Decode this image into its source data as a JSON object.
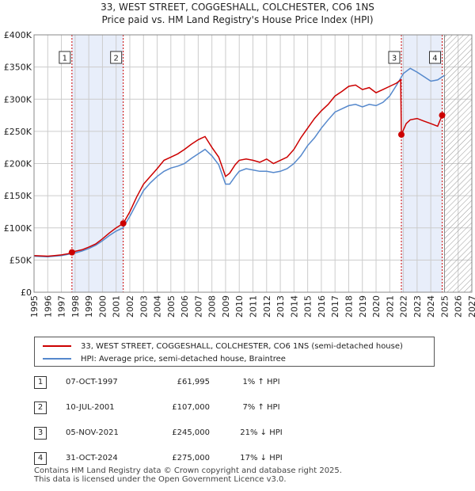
{
  "title_line1": "33, WEST STREET, COGGESHALL, COLCHESTER, CO6 1NS",
  "title_line2": "Price paid vs. HM Land Registry's House Price Index (HPI)",
  "colors": {
    "property_line": "#cc0000",
    "hpi_line": "#5588cc",
    "shade": "#e8eefa",
    "marker": "#cc0000",
    "vline": "#cc0000",
    "grid": "#cccccc"
  },
  "chart_data": {
    "type": "line",
    "title": "Price paid vs. HM Land Registry's House Price Index (HPI)",
    "xlabel": "",
    "ylabel": "",
    "xlim": [
      1995,
      2027
    ],
    "ylim": [
      0,
      400000
    ],
    "x_ticks": [
      1995,
      1996,
      1997,
      1998,
      1999,
      2000,
      2001,
      2002,
      2003,
      2004,
      2005,
      2006,
      2007,
      2008,
      2009,
      2010,
      2011,
      2012,
      2013,
      2014,
      2015,
      2016,
      2017,
      2018,
      2019,
      2020,
      2021,
      2022,
      2023,
      2024,
      2025,
      2026,
      2027
    ],
    "y_ticks": [
      {
        "value": 0,
        "label": "£0"
      },
      {
        "value": 50000,
        "label": "£50K"
      },
      {
        "value": 100000,
        "label": "£100K"
      },
      {
        "value": 150000,
        "label": "£150K"
      },
      {
        "value": 200000,
        "label": "£200K"
      },
      {
        "value": 250000,
        "label": "£250K"
      },
      {
        "value": 300000,
        "label": "£300K"
      },
      {
        "value": 350000,
        "label": "£350K"
      },
      {
        "value": 400000,
        "label": "£400K"
      }
    ],
    "grid": true,
    "future_hatch_start": 2025.0,
    "shaded_ranges": [
      [
        1997.77,
        2001.52
      ],
      [
        2021.85,
        2024.83
      ]
    ],
    "series": [
      {
        "name": "33, WEST STREET, COGGESHALL, COLCHESTER, CO6 1NS (semi-detached house)",
        "color": "#cc0000",
        "x": [
          1995.0,
          1995.5,
          1996.0,
          1996.5,
          1997.0,
          1997.5,
          1997.77,
          1998.0,
          1998.5,
          1999.0,
          1999.5,
          2000.0,
          2000.5,
          2001.0,
          2001.52,
          2002.0,
          2002.5,
          2003.0,
          2003.5,
          2004.0,
          2004.5,
          2005.0,
          2005.5,
          2006.0,
          2006.5,
          2007.0,
          2007.5,
          2008.0,
          2008.5,
          2009.0,
          2009.3,
          2009.7,
          2010.0,
          2010.5,
          2011.0,
          2011.5,
          2012.0,
          2012.5,
          2013.0,
          2013.5,
          2014.0,
          2014.5,
          2015.0,
          2015.5,
          2016.0,
          2016.5,
          2017.0,
          2017.5,
          2018.0,
          2018.5,
          2019.0,
          2019.5,
          2020.0,
          2020.5,
          2021.0,
          2021.5,
          2021.8,
          2021.85,
          2022.2,
          2022.5,
          2023.0,
          2023.5,
          2024.0,
          2024.5,
          2024.83,
          2025.0
        ],
        "values": [
          57000,
          56500,
          56000,
          57000,
          58000,
          60000,
          61995,
          63500,
          66000,
          70000,
          75000,
          83000,
          92000,
          100000,
          107000,
          125000,
          148000,
          168000,
          180000,
          192000,
          205000,
          210000,
          215000,
          222000,
          230000,
          237000,
          242000,
          225000,
          210000,
          180000,
          185000,
          198000,
          205000,
          207000,
          205000,
          202000,
          207000,
          200000,
          205000,
          210000,
          222000,
          240000,
          255000,
          270000,
          282000,
          292000,
          305000,
          312000,
          320000,
          322000,
          315000,
          318000,
          310000,
          315000,
          320000,
          325000,
          330000,
          245000,
          262000,
          268000,
          270000,
          266000,
          262000,
          258000,
          275000,
          278000
        ]
      },
      {
        "name": "HPI: Average price, semi-detached house, Braintree",
        "color": "#5588cc",
        "x": [
          1995.0,
          1995.5,
          1996.0,
          1996.5,
          1997.0,
          1997.5,
          1998.0,
          1998.5,
          1999.0,
          1999.5,
          2000.0,
          2000.5,
          2001.0,
          2001.5,
          2002.0,
          2002.5,
          2003.0,
          2003.5,
          2004.0,
          2004.5,
          2005.0,
          2005.5,
          2006.0,
          2006.5,
          2007.0,
          2007.5,
          2008.0,
          2008.5,
          2009.0,
          2009.3,
          2009.7,
          2010.0,
          2010.5,
          2011.0,
          2011.5,
          2012.0,
          2012.5,
          2013.0,
          2013.5,
          2014.0,
          2014.5,
          2015.0,
          2015.5,
          2016.0,
          2016.5,
          2017.0,
          2017.5,
          2018.0,
          2018.5,
          2019.0,
          2019.5,
          2020.0,
          2020.5,
          2021.0,
          2021.5,
          2022.0,
          2022.5,
          2023.0,
          2023.5,
          2024.0,
          2024.5,
          2025.0
        ],
        "values": [
          56000,
          55500,
          55000,
          56000,
          57000,
          59000,
          61000,
          64000,
          68000,
          73000,
          80000,
          88000,
          95000,
          100000,
          118000,
          138000,
          158000,
          170000,
          180000,
          188000,
          193000,
          196000,
          200000,
          208000,
          215000,
          222000,
          212000,
          198000,
          168000,
          168000,
          180000,
          188000,
          192000,
          190000,
          188000,
          188000,
          186000,
          188000,
          192000,
          200000,
          212000,
          228000,
          240000,
          255000,
          268000,
          280000,
          285000,
          290000,
          292000,
          288000,
          292000,
          290000,
          295000,
          305000,
          322000,
          340000,
          348000,
          342000,
          335000,
          328000,
          330000,
          337000
        ]
      }
    ],
    "transactions": [
      {
        "num": "1",
        "x": 1997.77,
        "value": 61995,
        "date": "07-OCT-1997",
        "price": "£61,995",
        "hpi": "1% ↑ HPI"
      },
      {
        "num": "2",
        "x": 2001.52,
        "value": 107000,
        "date": "10-JUL-2001",
        "price": "£107,000",
        "hpi": "7% ↑ HPI"
      },
      {
        "num": "3",
        "x": 2021.85,
        "value": 245000,
        "date": "05-NOV-2021",
        "price": "£245,000",
        "hpi": "21% ↓ HPI"
      },
      {
        "num": "4",
        "x": 2024.83,
        "value": 275000,
        "date": "31-OCT-2024",
        "price": "£275,000",
        "hpi": "17% ↓ HPI"
      }
    ]
  },
  "legend": {
    "property_label": "33, WEST STREET, COGGESHALL, COLCHESTER, CO6 1NS (semi-detached house)",
    "hpi_label": "HPI: Average price, semi-detached house, Braintree"
  },
  "transactions_table": [
    {
      "num": "1",
      "date": "07-OCT-1997",
      "price": "£61,995",
      "hpi": "1% ↑ HPI"
    },
    {
      "num": "2",
      "date": "10-JUL-2001",
      "price": "£107,000",
      "hpi": "7% ↑ HPI"
    },
    {
      "num": "3",
      "date": "05-NOV-2021",
      "price": "£245,000",
      "hpi": "21% ↓ HPI"
    },
    {
      "num": "4",
      "date": "31-OCT-2024",
      "price": "£275,000",
      "hpi": "17% ↓ HPI"
    }
  ],
  "footer": {
    "line1": "Contains HM Land Registry data © Crown copyright and database right 2025.",
    "line2": "This data is licensed under the Open Government Licence v3.0."
  }
}
